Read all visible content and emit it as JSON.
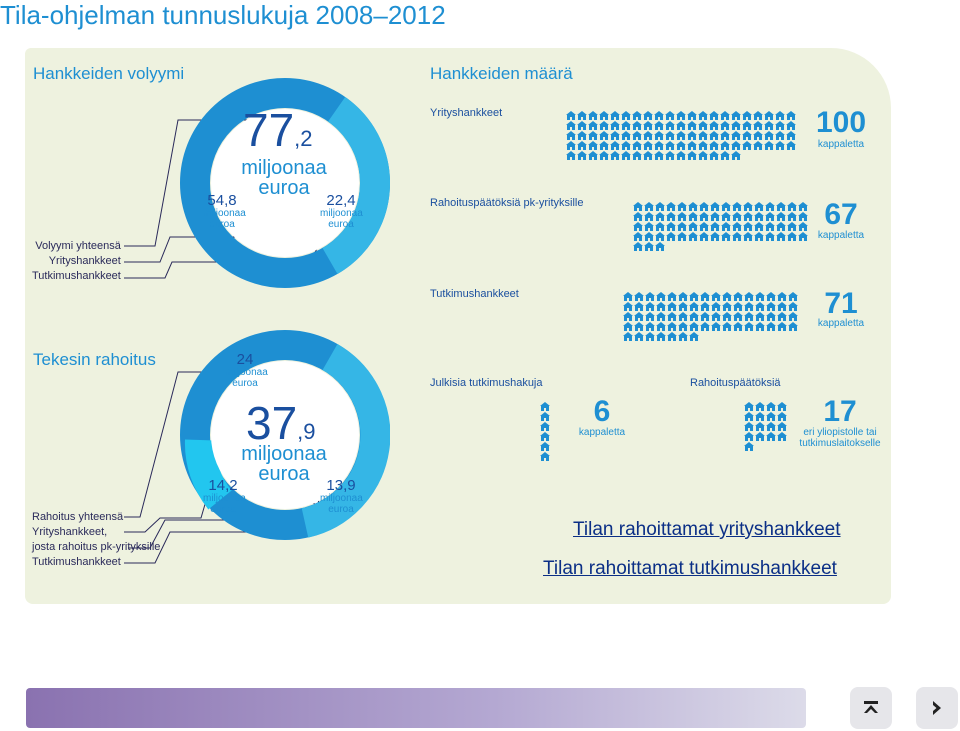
{
  "title": "Tila-ohjelman tunnuslukuja 2008–2012",
  "volume": {
    "heading": "Hankkeiden volyymi",
    "legend": [
      "Volyymi yhteensä",
      "Yrityshankkeet",
      "Tutkimushankkeet"
    ],
    "total": {
      "int": "77",
      "dec": ",2",
      "unit1": "miljoonaa",
      "unit2": "euroa"
    },
    "left": {
      "value": "54,8",
      "unit1": "miljoonaa",
      "unit2": "euroa"
    },
    "right": {
      "value": "22,4",
      "unit1": "miljoonaa",
      "unit2": "euroa"
    },
    "colors": {
      "company": "#1e8fd2",
      "research": "#35b6e6"
    }
  },
  "funding": {
    "heading": "Tekesin rahoitus",
    "legend": [
      "Rahoitus yhteensä",
      "Yrityshankkeet,",
      "josta rahoitus pk-yrityksille",
      "Tutkimushankkeet"
    ],
    "total": {
      "int": "37",
      "dec": ",9",
      "unit1": "miljoonaa",
      "unit2": "euroa"
    },
    "top": {
      "value": "24",
      "unit1": "miljoonaa",
      "unit2": "euroa"
    },
    "left": {
      "value": "14,2",
      "unit1": "miljoonaa",
      "unit2": "euroa"
    },
    "right": {
      "value": "13,9",
      "unit1": "miljoonaa",
      "unit2": "euroa"
    }
  },
  "count": {
    "heading": "Hankkeiden määrä",
    "rows": [
      {
        "label": "Yrityshankkeet",
        "value": "100",
        "unit": "kappaletta",
        "n": 100
      },
      {
        "label": "Rahoituspäätöksiä pk-yrityksille",
        "value": "67",
        "unit": "kappaletta",
        "n": 67
      },
      {
        "label": "Tutkimushankkeet",
        "value": "71",
        "unit": "kappaletta",
        "n": 71
      }
    ],
    "calls": {
      "label": "Julkisia tutkimushakuja",
      "value": "6",
      "unit": "kappaletta",
      "n": 6
    },
    "decisions": {
      "label": "Rahoituspäätöksiä",
      "value": "17",
      "unit1": "eri yliopistolle tai",
      "unit2": "tutkimuslaitokselle",
      "n": 17
    }
  },
  "links": [
    "Tilan rahoittamat yrityshankkeet",
    "Tilan rahoittamat tutkimushankkeet"
  ]
}
